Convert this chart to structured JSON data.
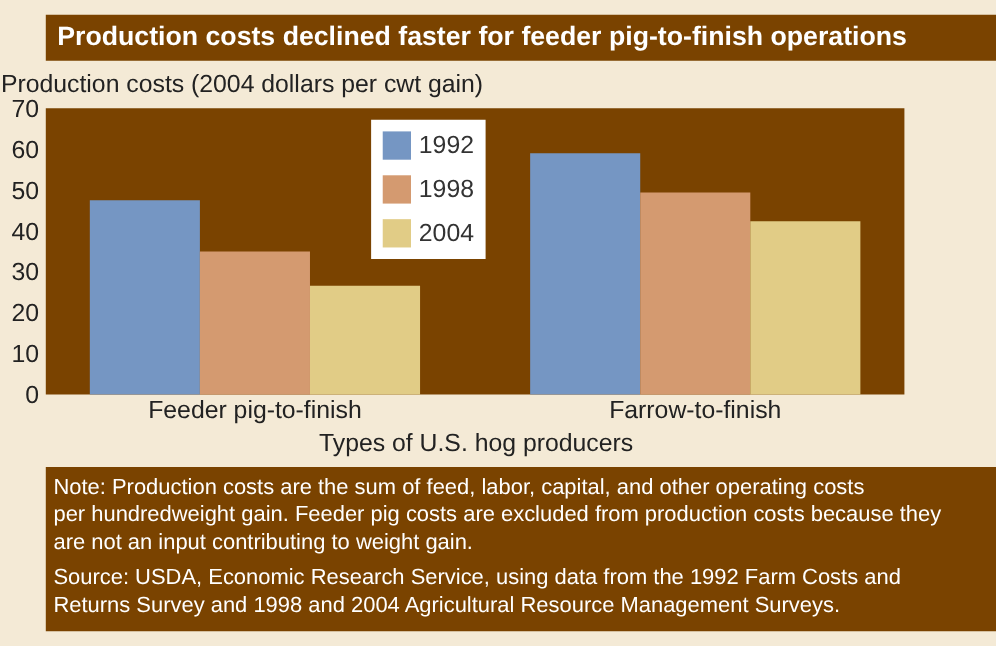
{
  "chart_data": {
    "type": "bar",
    "title": "Production costs declined faster for feeder pig-to-finish operations",
    "ylabel": "Production costs (2004 dollars per cwt gain)",
    "xlabel": "Types of U.S. hog producers",
    "categories": [
      "Feeder pig-to-finish",
      "Farrow-to-finish"
    ],
    "series": [
      {
        "name": "1992",
        "color": "#7596c3",
        "values": [
          47.5,
          59.0
        ]
      },
      {
        "name": "1998",
        "color": "#d49a70",
        "values": [
          35.0,
          49.4
        ]
      },
      {
        "name": "2004",
        "color": "#e1cc86",
        "values": [
          26.6,
          42.4
        ]
      }
    ],
    "ylim": [
      0,
      70
    ],
    "yticks": [
      0,
      10,
      20,
      30,
      40,
      50,
      60,
      70
    ],
    "grid": false,
    "legend": "top",
    "annotations": [
      "Note: Production costs are the sum of feed, labor, capital, and other operating costs per hundredweight gain. Feeder pig costs are excluded from production costs because they are not an input contributing to weight gain.",
      "Source:  USDA, Economic Research Service, using data from the 1992 Farm Costs and Returns Survey and 1998 and 2004 Agricultural Resource Management Surveys."
    ]
  }
}
